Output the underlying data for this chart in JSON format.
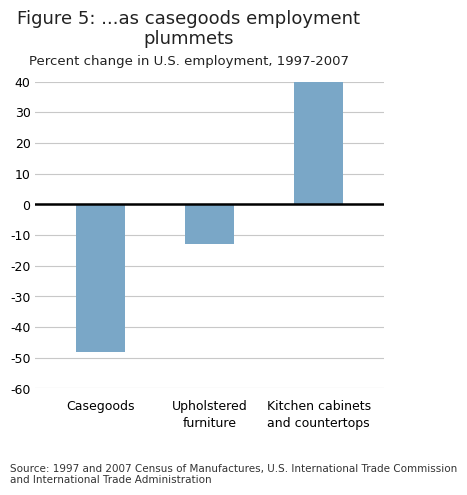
{
  "title_line1": "Figure 5: ...as casegoods employment",
  "title_line2": "plummets",
  "subtitle": "Percent change in U.S. employment, 1997-2007",
  "categories": [
    "Casegoods",
    "Upholstered\nfurniture",
    "Kitchen cabinets\nand countertops"
  ],
  "values": [
    -48,
    -13,
    40
  ],
  "bar_color": "#7aa7c7",
  "ylim": [
    -60,
    40
  ],
  "yticks": [
    -60,
    -50,
    -40,
    -30,
    -20,
    -10,
    0,
    10,
    20,
    30,
    40
  ],
  "ytick_labels": [
    "-60",
    "-50",
    "-40",
    "-30",
    "-20",
    "-10",
    "0",
    "10",
    "20",
    "30",
    "40"
  ],
  "source_text": "Source: 1997 and 2007 Census of Manufactures, U.S. International Trade Commission\nand International Trade Administration",
  "title_fontsize": 13,
  "subtitle_fontsize": 9.5,
  "tick_fontsize": 9,
  "source_fontsize": 7.5,
  "bar_width": 0.45,
  "background_color": "#ffffff",
  "grid_color": "#c8c8c8",
  "zero_line_color": "#000000"
}
